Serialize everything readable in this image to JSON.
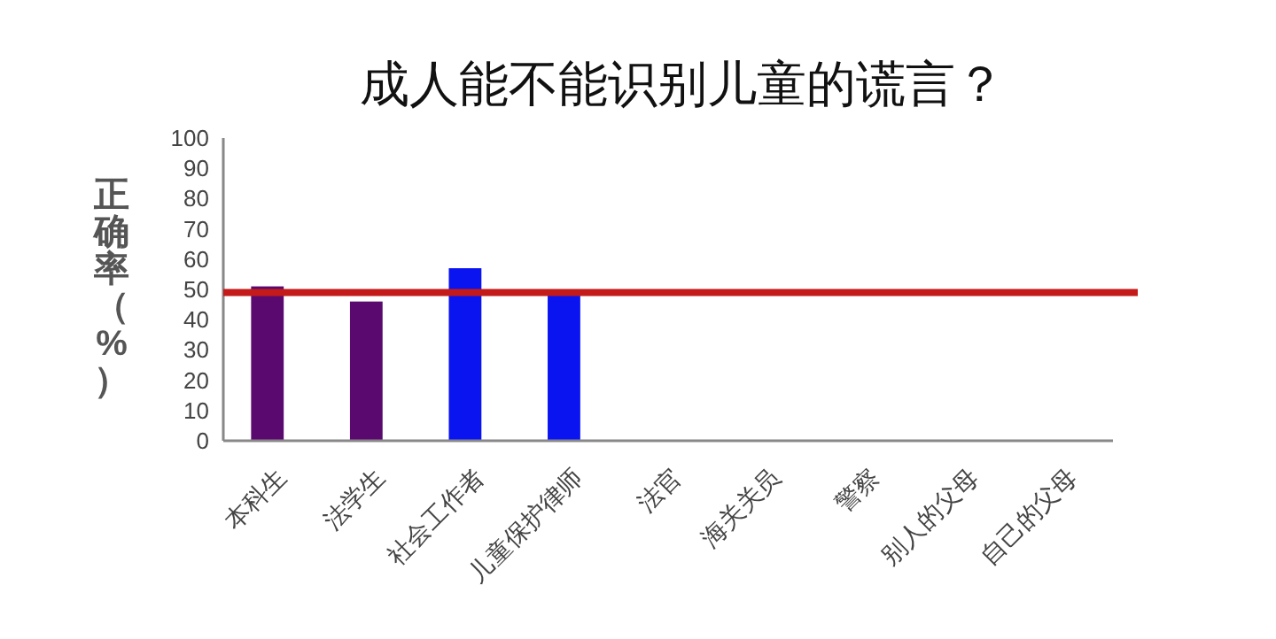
{
  "chart_data": {
    "type": "bar",
    "title": "成人能不能识别儿童的谎言？",
    "ylabel": "正确率（%）",
    "categories": [
      "本科生",
      "法学生",
      "社会工作者",
      "儿童保护律师",
      "法官",
      "海关关员",
      "警察",
      "别人的父母",
      "自己的父母"
    ],
    "values": [
      51,
      46,
      57,
      48,
      null,
      null,
      null,
      null,
      null
    ],
    "colors": [
      "#5a0a6e",
      "#5a0a6e",
      "#0a14f0",
      "#0a14f0",
      null,
      null,
      null,
      null,
      null
    ],
    "ylim": [
      0,
      100
    ],
    "yticks": [
      0,
      10,
      20,
      30,
      40,
      50,
      60,
      70,
      80,
      90,
      100
    ],
    "grid": false,
    "ref_lines": [
      {
        "axis": "y",
        "value": 49,
        "color": "#c41a1a",
        "line_style": "solid"
      }
    ]
  }
}
